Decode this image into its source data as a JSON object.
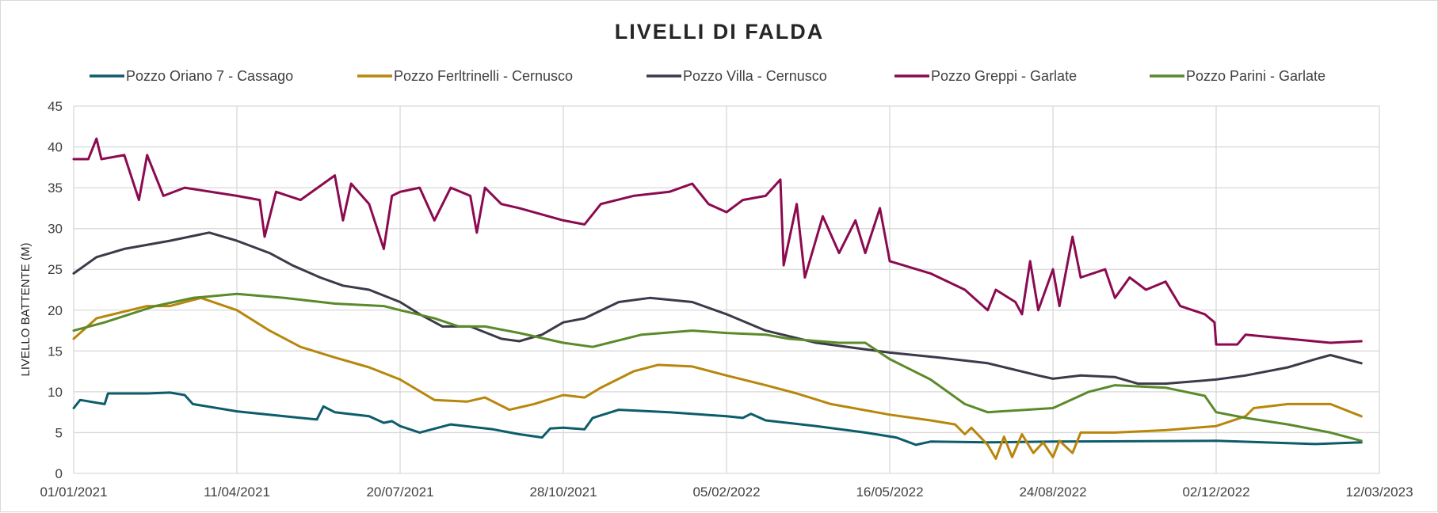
{
  "chart_data": {
    "type": "line",
    "title": "LIVELLI  DI FALDA",
    "ylabel": "LIVELLO BATTENTE (M)",
    "xlabel": "",
    "xlim": [
      "2021-01-01",
      "2023-03-12"
    ],
    "ylim": [
      0,
      45
    ],
    "yticks": [
      0,
      5,
      10,
      15,
      20,
      25,
      30,
      35,
      40,
      45
    ],
    "xtick_labels": [
      "01/01/2021",
      "11/04/2021",
      "20/07/2021",
      "28/10/2021",
      "05/02/2022",
      "16/05/2022",
      "24/08/2022",
      "02/12/2022",
      "12/03/2023"
    ],
    "xtick_dates": [
      "2021-01-01",
      "2021-04-11",
      "2021-07-20",
      "2021-10-28",
      "2022-02-05",
      "2022-05-16",
      "2022-08-24",
      "2022-12-02",
      "2023-03-12"
    ],
    "grid": true,
    "legend_position": "top",
    "series": [
      {
        "name": "Pozzo Oriano 7 - Cassago",
        "color": "#0d5c6b",
        "points": [
          [
            "2021-01-01",
            8.0
          ],
          [
            "2021-01-05",
            9.0
          ],
          [
            "2021-01-20",
            8.5
          ],
          [
            "2021-01-22",
            9.8
          ],
          [
            "2021-02-15",
            9.8
          ],
          [
            "2021-03-01",
            9.9
          ],
          [
            "2021-03-10",
            9.6
          ],
          [
            "2021-03-15",
            8.5
          ],
          [
            "2021-04-11",
            7.6
          ],
          [
            "2021-05-10",
            7.0
          ],
          [
            "2021-05-30",
            6.6
          ],
          [
            "2021-06-03",
            8.2
          ],
          [
            "2021-06-10",
            7.5
          ],
          [
            "2021-07-01",
            7.0
          ],
          [
            "2021-07-10",
            6.2
          ],
          [
            "2021-07-15",
            6.4
          ],
          [
            "2021-07-20",
            5.8
          ],
          [
            "2021-08-01",
            5.0
          ],
          [
            "2021-08-20",
            6.0
          ],
          [
            "2021-09-15",
            5.4
          ],
          [
            "2021-10-01",
            4.8
          ],
          [
            "2021-10-15",
            4.4
          ],
          [
            "2021-10-20",
            5.5
          ],
          [
            "2021-10-28",
            5.6
          ],
          [
            "2021-11-10",
            5.4
          ],
          [
            "2021-11-15",
            6.8
          ],
          [
            "2021-12-01",
            7.8
          ],
          [
            "2022-01-01",
            7.5
          ],
          [
            "2022-02-05",
            7.0
          ],
          [
            "2022-02-15",
            6.8
          ],
          [
            "2022-02-20",
            7.3
          ],
          [
            "2022-03-01",
            6.5
          ],
          [
            "2022-04-01",
            5.8
          ],
          [
            "2022-05-01",
            5.0
          ],
          [
            "2022-05-20",
            4.4
          ],
          [
            "2022-06-01",
            3.5
          ],
          [
            "2022-06-10",
            3.9
          ],
          [
            "2022-07-15",
            3.8
          ],
          [
            "2022-08-24",
            3.9
          ],
          [
            "2022-12-02",
            4.0
          ],
          [
            "2023-01-15",
            3.7
          ],
          [
            "2023-02-01",
            3.6
          ],
          [
            "2023-03-01",
            3.8
          ]
        ]
      },
      {
        "name": "Pozzo Ferltrinelli - Cernusco",
        "color": "#b8860b",
        "points": [
          [
            "2021-01-01",
            16.5
          ],
          [
            "2021-01-15",
            19.0
          ],
          [
            "2021-02-15",
            20.5
          ],
          [
            "2021-03-01",
            20.5
          ],
          [
            "2021-03-20",
            21.5
          ],
          [
            "2021-04-11",
            20.0
          ],
          [
            "2021-05-01",
            17.5
          ],
          [
            "2021-05-20",
            15.5
          ],
          [
            "2021-06-10",
            14.2
          ],
          [
            "2021-07-01",
            13.0
          ],
          [
            "2021-07-20",
            11.5
          ],
          [
            "2021-08-10",
            9.0
          ],
          [
            "2021-08-30",
            8.8
          ],
          [
            "2021-09-10",
            9.3
          ],
          [
            "2021-09-25",
            7.8
          ],
          [
            "2021-10-10",
            8.5
          ],
          [
            "2021-10-28",
            9.6
          ],
          [
            "2021-11-10",
            9.3
          ],
          [
            "2021-11-20",
            10.5
          ],
          [
            "2021-12-10",
            12.5
          ],
          [
            "2021-12-25",
            13.3
          ],
          [
            "2022-01-15",
            13.1
          ],
          [
            "2022-02-05",
            12.0
          ],
          [
            "2022-03-01",
            10.8
          ],
          [
            "2022-03-20",
            9.8
          ],
          [
            "2022-04-10",
            8.5
          ],
          [
            "2022-05-16",
            7.2
          ],
          [
            "2022-06-10",
            6.5
          ],
          [
            "2022-06-25",
            6.0
          ],
          [
            "2022-07-01",
            4.8
          ],
          [
            "2022-07-05",
            5.6
          ],
          [
            "2022-07-15",
            3.5
          ],
          [
            "2022-07-20",
            1.8
          ],
          [
            "2022-07-25",
            4.5
          ],
          [
            "2022-07-30",
            2.0
          ],
          [
            "2022-08-05",
            4.8
          ],
          [
            "2022-08-12",
            2.5
          ],
          [
            "2022-08-18",
            3.8
          ],
          [
            "2022-08-24",
            2.0
          ],
          [
            "2022-08-28",
            4.0
          ],
          [
            "2022-09-05",
            2.5
          ],
          [
            "2022-09-10",
            5.0
          ],
          [
            "2022-10-01",
            5.0
          ],
          [
            "2022-11-01",
            5.3
          ],
          [
            "2022-12-02",
            5.8
          ],
          [
            "2022-12-20",
            7.0
          ],
          [
            "2022-12-25",
            8.0
          ],
          [
            "2023-01-15",
            8.5
          ],
          [
            "2023-02-10",
            8.5
          ],
          [
            "2023-03-01",
            7.0
          ]
        ]
      },
      {
        "name": "Pozzo Villa - Cernusco",
        "color": "#3a3a4a",
        "points": [
          [
            "2021-01-01",
            24.5
          ],
          [
            "2021-01-15",
            26.5
          ],
          [
            "2021-02-01",
            27.5
          ],
          [
            "2021-03-01",
            28.5
          ],
          [
            "2021-03-25",
            29.5
          ],
          [
            "2021-04-11",
            28.5
          ],
          [
            "2021-05-01",
            27.0
          ],
          [
            "2021-05-15",
            25.5
          ],
          [
            "2021-06-01",
            24.0
          ],
          [
            "2021-06-15",
            23.0
          ],
          [
            "2021-07-01",
            22.5
          ],
          [
            "2021-07-20",
            21.0
          ],
          [
            "2021-08-01",
            19.5
          ],
          [
            "2021-08-15",
            18.0
          ],
          [
            "2021-09-01",
            18.0
          ],
          [
            "2021-09-20",
            16.5
          ],
          [
            "2021-10-01",
            16.2
          ],
          [
            "2021-10-15",
            17.0
          ],
          [
            "2021-10-28",
            18.5
          ],
          [
            "2021-11-10",
            19.0
          ],
          [
            "2021-12-01",
            21.0
          ],
          [
            "2021-12-20",
            21.5
          ],
          [
            "2022-01-15",
            21.0
          ],
          [
            "2022-02-05",
            19.5
          ],
          [
            "2022-03-01",
            17.5
          ],
          [
            "2022-04-01",
            16.0
          ],
          [
            "2022-05-16",
            14.8
          ],
          [
            "2022-06-15",
            14.2
          ],
          [
            "2022-07-15",
            13.5
          ],
          [
            "2022-08-15",
            12.0
          ],
          [
            "2022-08-24",
            11.6
          ],
          [
            "2022-09-10",
            12.0
          ],
          [
            "2022-10-01",
            11.8
          ],
          [
            "2022-10-15",
            11.0
          ],
          [
            "2022-11-01",
            11.0
          ],
          [
            "2022-12-02",
            11.5
          ],
          [
            "2022-12-20",
            12.0
          ],
          [
            "2023-01-15",
            13.0
          ],
          [
            "2023-02-01",
            14.0
          ],
          [
            "2023-02-10",
            14.5
          ],
          [
            "2023-03-01",
            13.5
          ]
        ]
      },
      {
        "name": "Pozzo Greppi - Garlate",
        "color": "#8b0a50",
        "points": [
          [
            "2021-01-01",
            38.5
          ],
          [
            "2021-01-10",
            38.5
          ],
          [
            "2021-01-15",
            41.0
          ],
          [
            "2021-01-18",
            38.5
          ],
          [
            "2021-02-01",
            39.0
          ],
          [
            "2021-02-10",
            33.5
          ],
          [
            "2021-02-15",
            39.0
          ],
          [
            "2021-02-25",
            34.0
          ],
          [
            "2021-03-10",
            35.0
          ],
          [
            "2021-04-11",
            34.0
          ],
          [
            "2021-04-25",
            33.5
          ],
          [
            "2021-04-28",
            29.0
          ],
          [
            "2021-05-05",
            34.5
          ],
          [
            "2021-05-20",
            33.5
          ],
          [
            "2021-06-10",
            36.5
          ],
          [
            "2021-06-15",
            31.0
          ],
          [
            "2021-06-20",
            35.5
          ],
          [
            "2021-07-01",
            33.0
          ],
          [
            "2021-07-10",
            27.5
          ],
          [
            "2021-07-15",
            34.0
          ],
          [
            "2021-07-20",
            34.5
          ],
          [
            "2021-08-01",
            35.0
          ],
          [
            "2021-08-10",
            31.0
          ],
          [
            "2021-08-20",
            35.0
          ],
          [
            "2021-09-01",
            34.0
          ],
          [
            "2021-09-05",
            29.5
          ],
          [
            "2021-09-10",
            35.0
          ],
          [
            "2021-09-20",
            33.0
          ],
          [
            "2021-10-01",
            32.5
          ],
          [
            "2021-10-28",
            31.0
          ],
          [
            "2021-11-10",
            30.5
          ],
          [
            "2021-11-20",
            33.0
          ],
          [
            "2021-12-10",
            34.0
          ],
          [
            "2022-01-01",
            34.5
          ],
          [
            "2022-01-15",
            35.5
          ],
          [
            "2022-01-25",
            33.0
          ],
          [
            "2022-02-05",
            32.0
          ],
          [
            "2022-02-15",
            33.5
          ],
          [
            "2022-03-01",
            34.0
          ],
          [
            "2022-03-10",
            36.0
          ],
          [
            "2022-03-12",
            25.5
          ],
          [
            "2022-03-20",
            33.0
          ],
          [
            "2022-03-25",
            24.0
          ],
          [
            "2022-04-05",
            31.5
          ],
          [
            "2022-04-15",
            27.0
          ],
          [
            "2022-04-25",
            31.0
          ],
          [
            "2022-05-01",
            27.0
          ],
          [
            "2022-05-10",
            32.5
          ],
          [
            "2022-05-16",
            26.0
          ],
          [
            "2022-06-10",
            24.5
          ],
          [
            "2022-07-01",
            22.5
          ],
          [
            "2022-07-15",
            20.0
          ],
          [
            "2022-07-20",
            22.5
          ],
          [
            "2022-08-01",
            21.0
          ],
          [
            "2022-08-05",
            19.5
          ],
          [
            "2022-08-10",
            26.0
          ],
          [
            "2022-08-15",
            20.0
          ],
          [
            "2022-08-24",
            25.0
          ],
          [
            "2022-08-28",
            20.5
          ],
          [
            "2022-09-05",
            29.0
          ],
          [
            "2022-09-10",
            24.0
          ],
          [
            "2022-09-25",
            25.0
          ],
          [
            "2022-10-01",
            21.5
          ],
          [
            "2022-10-10",
            24.0
          ],
          [
            "2022-10-20",
            22.5
          ],
          [
            "2022-11-01",
            23.5
          ],
          [
            "2022-11-10",
            20.5
          ],
          [
            "2022-11-25",
            19.5
          ],
          [
            "2022-12-01",
            18.5
          ],
          [
            "2022-12-02",
            15.8
          ],
          [
            "2022-12-15",
            15.8
          ],
          [
            "2022-12-20",
            17.0
          ],
          [
            "2023-01-15",
            16.5
          ],
          [
            "2023-02-10",
            16.0
          ],
          [
            "2023-03-01",
            16.2
          ]
        ]
      },
      {
        "name": "Pozzo Parini - Garlate",
        "color": "#5a8a2a",
        "points": [
          [
            "2021-01-01",
            17.5
          ],
          [
            "2021-01-20",
            18.5
          ],
          [
            "2021-02-20",
            20.5
          ],
          [
            "2021-03-15",
            21.5
          ],
          [
            "2021-04-11",
            22.0
          ],
          [
            "2021-05-10",
            21.5
          ],
          [
            "2021-06-10",
            20.8
          ],
          [
            "2021-07-10",
            20.5
          ],
          [
            "2021-07-20",
            20.0
          ],
          [
            "2021-08-10",
            19.0
          ],
          [
            "2021-08-25",
            18.0
          ],
          [
            "2021-09-10",
            18.0
          ],
          [
            "2021-10-01",
            17.2
          ],
          [
            "2021-10-28",
            16.0
          ],
          [
            "2021-11-15",
            15.5
          ],
          [
            "2021-12-15",
            17.0
          ],
          [
            "2022-01-15",
            17.5
          ],
          [
            "2022-02-05",
            17.2
          ],
          [
            "2022-03-01",
            17.0
          ],
          [
            "2022-03-15",
            16.5
          ],
          [
            "2022-04-15",
            16.0
          ],
          [
            "2022-05-01",
            16.0
          ],
          [
            "2022-05-16",
            14.0
          ],
          [
            "2022-06-10",
            11.5
          ],
          [
            "2022-07-01",
            8.5
          ],
          [
            "2022-07-15",
            7.5
          ],
          [
            "2022-08-24",
            8.0
          ],
          [
            "2022-09-15",
            10.0
          ],
          [
            "2022-10-01",
            10.8
          ],
          [
            "2022-11-01",
            10.5
          ],
          [
            "2022-11-25",
            9.5
          ],
          [
            "2022-12-02",
            7.5
          ],
          [
            "2022-12-20",
            6.8
          ],
          [
            "2023-01-15",
            6.0
          ],
          [
            "2023-02-10",
            5.0
          ],
          [
            "2023-03-01",
            4.0
          ]
        ]
      }
    ]
  }
}
